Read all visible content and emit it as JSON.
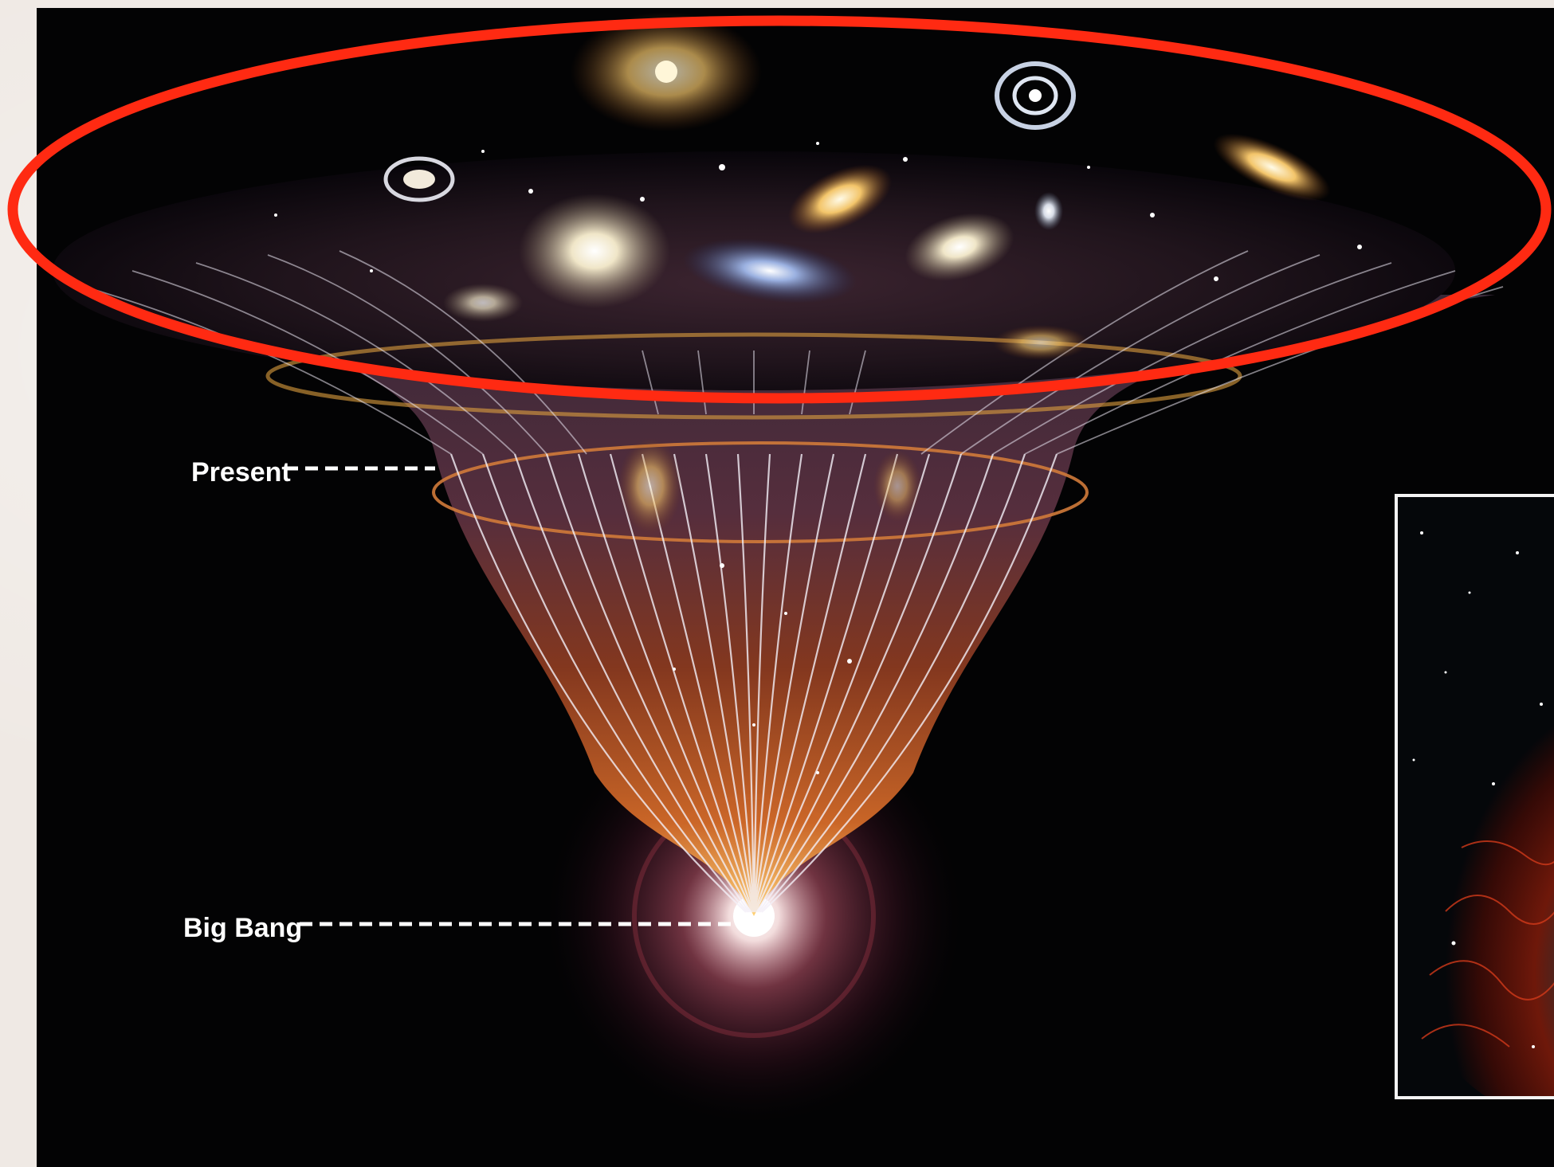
{
  "labels": {
    "present": "Present",
    "big_bang": "Big Bang"
  },
  "colors": {
    "highlight_ellipse": "#ff2a12",
    "background_panel": "#030304",
    "slide_background": "#efe9e4",
    "label_text": "#ffffff"
  },
  "icons": {
    "dashed_pointer": "dashed-line",
    "highlight": "red-ellipse"
  }
}
